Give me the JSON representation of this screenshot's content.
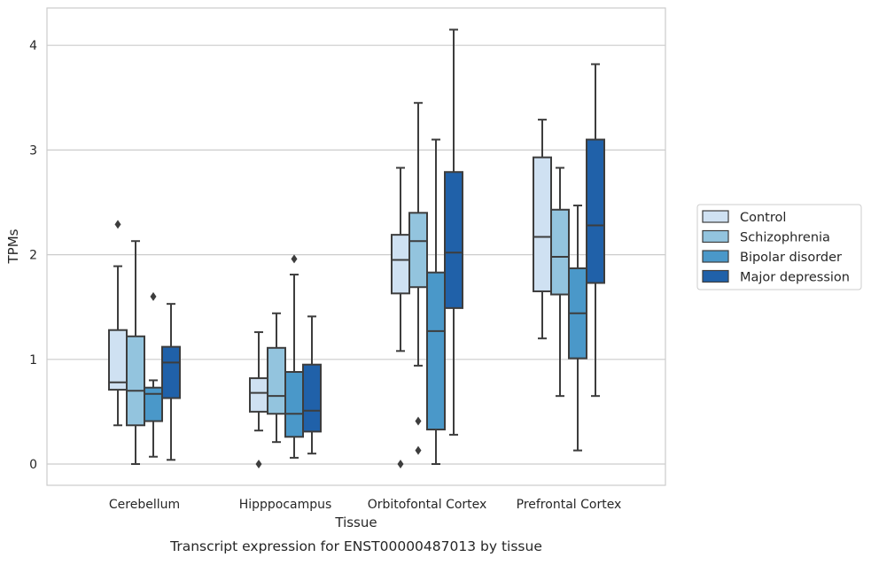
{
  "chart_data": {
    "type": "boxplot",
    "xlabel": "Tissue",
    "ylabel": "TPMs",
    "caption": "Transcript expression for ENST00000487013 by tissue",
    "categories": [
      "Cerebellum",
      "Hipppocampus",
      "Orbitofontal Cortex",
      "Prefrontal Cortex"
    ],
    "ylim": [
      -0.2,
      4.35
    ],
    "yticks": [
      0,
      1,
      2,
      3,
      4
    ],
    "grid": "horizontal",
    "legend_position": "right",
    "series": [
      {
        "name": "Control",
        "color": "#cfe1f2",
        "boxes": [
          {
            "whislo": 0.37,
            "q1": 0.71,
            "med": 0.78,
            "q3": 1.28,
            "whishi": 1.89,
            "fliers": [
              2.29
            ]
          },
          {
            "whislo": 0.32,
            "q1": 0.5,
            "med": 0.68,
            "q3": 0.82,
            "whishi": 1.26,
            "fliers": [
              0.0
            ]
          },
          {
            "whislo": 1.08,
            "q1": 1.63,
            "med": 1.95,
            "q3": 2.19,
            "whishi": 2.83,
            "fliers": [
              0.0
            ]
          },
          {
            "whislo": 1.2,
            "q1": 1.65,
            "med": 2.17,
            "q3": 2.93,
            "whishi": 3.29,
            "fliers": []
          }
        ]
      },
      {
        "name": "Schizophrenia",
        "color": "#93c4de",
        "boxes": [
          {
            "whislo": 0.0,
            "q1": 0.37,
            "med": 0.7,
            "q3": 1.22,
            "whishi": 2.13,
            "fliers": []
          },
          {
            "whislo": 0.21,
            "q1": 0.48,
            "med": 0.65,
            "q3": 1.11,
            "whishi": 1.44,
            "fliers": []
          },
          {
            "whislo": 0.94,
            "q1": 1.69,
            "med": 2.13,
            "q3": 2.4,
            "whishi": 3.45,
            "fliers": [
              0.13,
              0.41
            ]
          },
          {
            "whislo": 0.65,
            "q1": 1.62,
            "med": 1.98,
            "q3": 2.43,
            "whishi": 2.83,
            "fliers": []
          }
        ]
      },
      {
        "name": "Bipolar disorder",
        "color": "#4a98c9",
        "boxes": [
          {
            "whislo": 0.07,
            "q1": 0.41,
            "med": 0.67,
            "q3": 0.73,
            "whishi": 0.8,
            "fliers": [
              1.6
            ]
          },
          {
            "whislo": 0.06,
            "q1": 0.26,
            "med": 0.48,
            "q3": 0.88,
            "whishi": 1.81,
            "fliers": [
              1.96
            ]
          },
          {
            "whislo": 0.0,
            "q1": 0.33,
            "med": 1.27,
            "q3": 1.83,
            "whishi": 3.1,
            "fliers": []
          },
          {
            "whislo": 0.13,
            "q1": 1.01,
            "med": 1.44,
            "q3": 1.87,
            "whishi": 2.47,
            "fliers": []
          }
        ]
      },
      {
        "name": "Major depression",
        "color": "#2061a9",
        "boxes": [
          {
            "whislo": 0.04,
            "q1": 0.63,
            "med": 0.97,
            "q3": 1.12,
            "whishi": 1.53,
            "fliers": []
          },
          {
            "whislo": 0.1,
            "q1": 0.31,
            "med": 0.51,
            "q3": 0.95,
            "whishi": 1.41,
            "fliers": []
          },
          {
            "whislo": 0.28,
            "q1": 1.49,
            "med": 2.02,
            "q3": 2.79,
            "whishi": 4.15,
            "fliers": []
          },
          {
            "whislo": 0.65,
            "q1": 1.73,
            "med": 2.28,
            "q3": 3.1,
            "whishi": 3.82,
            "fliers": []
          }
        ]
      }
    ]
  }
}
